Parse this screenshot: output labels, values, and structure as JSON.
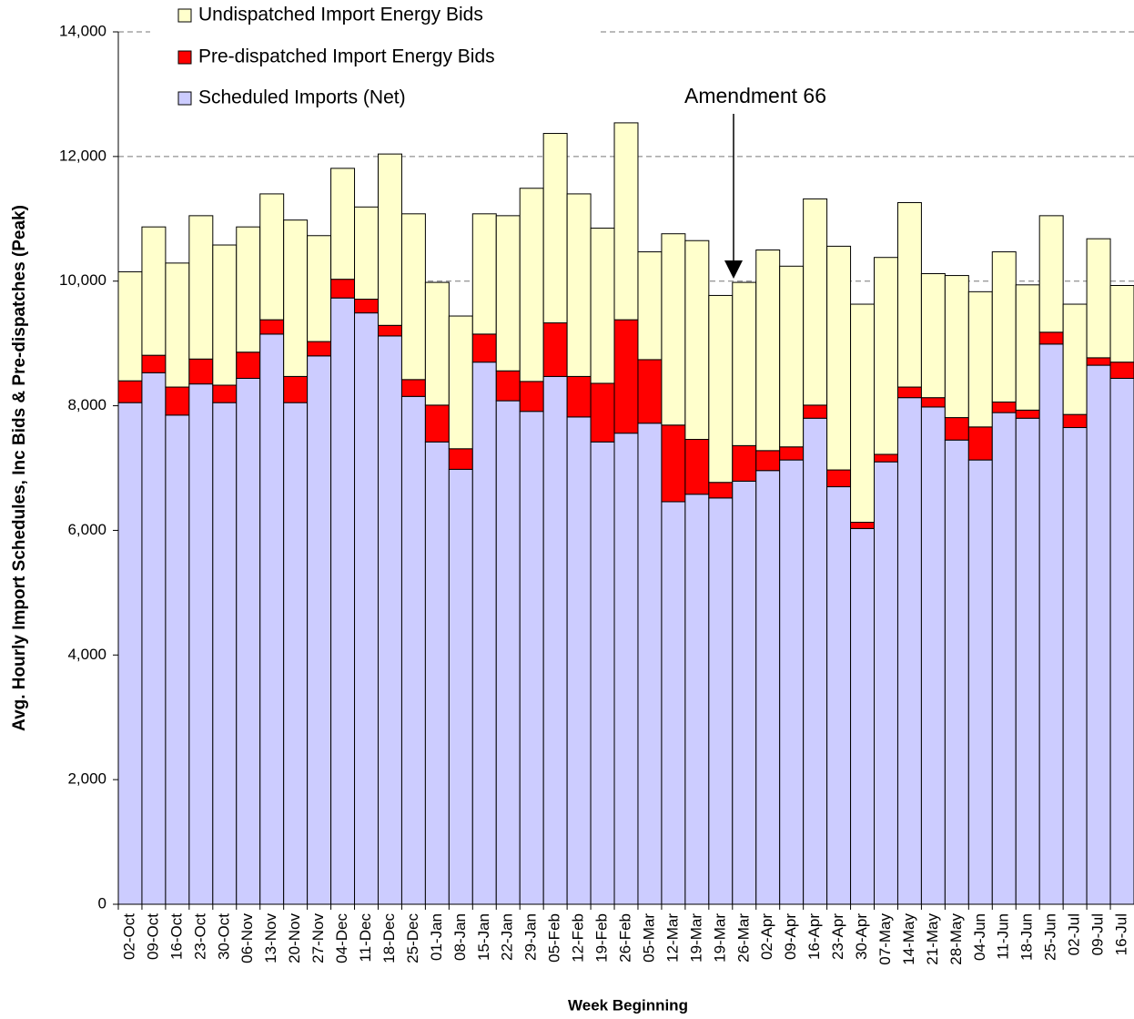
{
  "chart_data": {
    "type": "stacked_bar",
    "y_label": "Avg. Hourly Import Schedules, Inc Bids & Pre-dispatches (Peak)",
    "x_label": "Week Beginning",
    "annotation": "Amendment 66",
    "categories": [
      "02-Oct",
      "09-Oct",
      "16-Oct",
      "23-Oct",
      "30-Oct",
      "06-Nov",
      "13-Nov",
      "20-Nov",
      "27-Nov",
      "04-Dec",
      "11-Dec",
      "18-Dec",
      "25-Dec",
      "01-Jan",
      "08-Jan",
      "15-Jan",
      "22-Jan",
      "29-Jan",
      "05-Feb",
      "12-Feb",
      "19-Feb",
      "26-Feb",
      "05-Mar",
      "12-Mar",
      "19-Mar",
      "19-Mar",
      "26-Mar",
      "02-Apr",
      "09-Apr",
      "16-Apr",
      "23-Apr",
      "30-Apr",
      "07-May",
      "14-May",
      "21-May",
      "28-May",
      "04-Jun",
      "11-Jun",
      "18-Jun",
      "25-Jun",
      "02-Jul",
      "09-Jul",
      "16-Jul"
    ],
    "series": [
      {
        "name": "Scheduled Imports (Net)",
        "color": "#ccccff",
        "values": [
          8050,
          8530,
          7850,
          8350,
          8050,
          8440,
          9150,
          8050,
          8800,
          9730,
          9490,
          9120,
          8150,
          7420,
          6980,
          8700,
          8080,
          7910,
          8470,
          7820,
          7420,
          7560,
          7720,
          6460,
          6580,
          6520,
          6790,
          6960,
          7130,
          7800,
          6700,
          6030,
          7100,
          8130,
          7980,
          7450,
          7130,
          7890,
          7800,
          8990,
          7650,
          8650,
          8440
        ]
      },
      {
        "name": "Pre-dispatched Import Energy Bids",
        "color": "#ff0000",
        "values": [
          350,
          280,
          450,
          400,
          280,
          420,
          230,
          420,
          230,
          300,
          220,
          170,
          270,
          590,
          330,
          450,
          480,
          480,
          860,
          650,
          940,
          1820,
          1020,
          1230,
          880,
          250,
          570,
          320,
          210,
          210,
          270,
          100,
          120,
          170,
          150,
          360,
          530,
          170,
          130,
          190,
          210,
          120,
          260
        ]
      },
      {
        "name": "Undispatched Import Energy Bids",
        "color": "#ffffcc",
        "values": [
          1750,
          2060,
          1990,
          2300,
          2250,
          2010,
          2020,
          2510,
          1700,
          1780,
          1480,
          2750,
          2660,
          1970,
          2130,
          1930,
          2490,
          3100,
          3040,
          2930,
          2490,
          3160,
          1730,
          3070,
          3190,
          3000,
          2620,
          3220,
          2900,
          3310,
          3590,
          3500,
          3160,
          2960,
          1990,
          2280,
          2170,
          2410,
          2010,
          1870,
          1770,
          1910,
          1230
        ]
      }
    ],
    "ylim": [
      0,
      14000
    ],
    "yticks": [
      0,
      {
        "value": 2000,
        "label": "2,000"
      },
      {
        "value": 4000,
        "label": "4,000"
      },
      {
        "value": 6000,
        "label": "6,000"
      },
      {
        "value": 8000,
        "label": "8,000"
      },
      {
        "value": 10000,
        "label": "10,000"
      },
      {
        "value": 12000,
        "label": "12,000"
      },
      {
        "value": 14000,
        "label": "14,000"
      }
    ],
    "grid": true
  }
}
